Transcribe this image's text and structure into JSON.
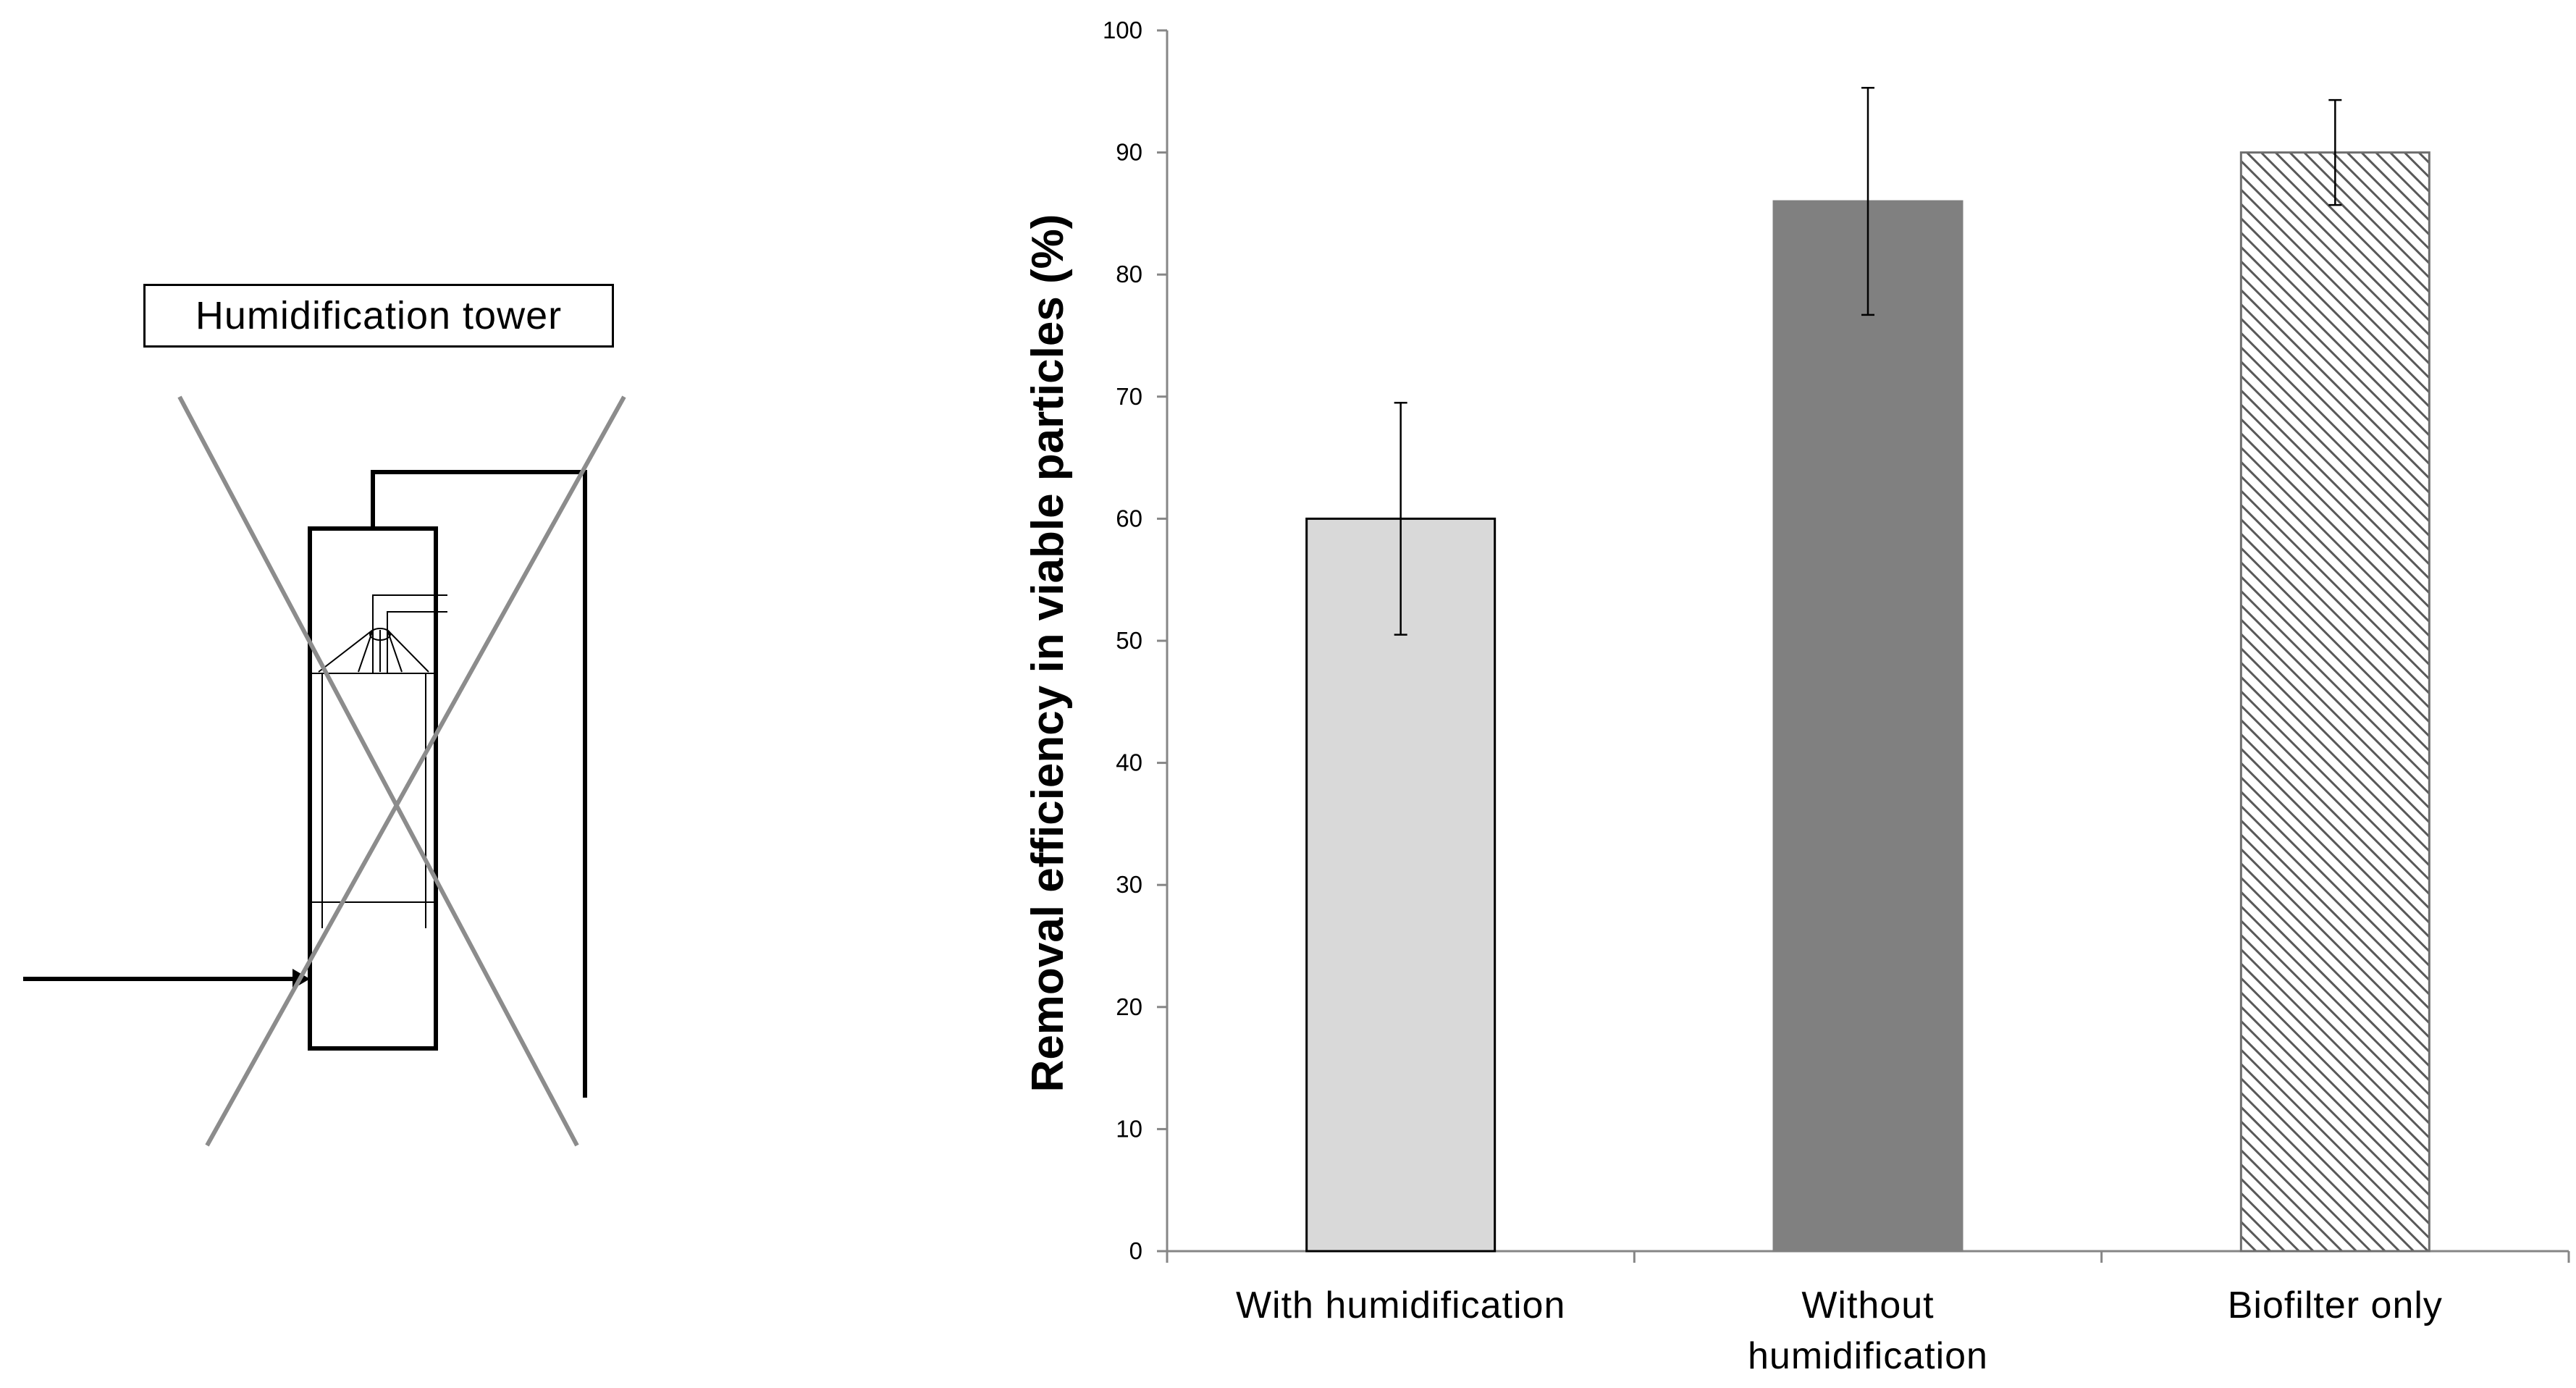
{
  "diagram": {
    "label": "Humidification tower"
  },
  "chart_data": {
    "type": "bar",
    "title": "",
    "xlabel": "",
    "ylabel": "Removal efficiency in viable particles (%)",
    "ylim": [
      0,
      100
    ],
    "yticks": [
      0,
      10,
      20,
      30,
      40,
      50,
      60,
      70,
      80,
      90,
      100
    ],
    "categories": [
      {
        "lines": [
          "With humidification"
        ]
      },
      {
        "lines": [
          "Without",
          "humidification"
        ]
      },
      {
        "lines": [
          "Biofilter only"
        ]
      }
    ],
    "values": [
      60.0,
      86.0,
      90.0
    ],
    "error_low": [
      50.5,
      76.7,
      85.7
    ],
    "error_high": [
      69.5,
      95.3,
      94.3
    ],
    "bar_fills": [
      "light-gray",
      "dark-gray",
      "diagonal-hatch"
    ],
    "colors": {
      "light_gray": "#d9d9d9",
      "dark_gray": "#808080",
      "hatch": "#595959",
      "axis": "#868686"
    },
    "grid": false,
    "legend": "none"
  }
}
